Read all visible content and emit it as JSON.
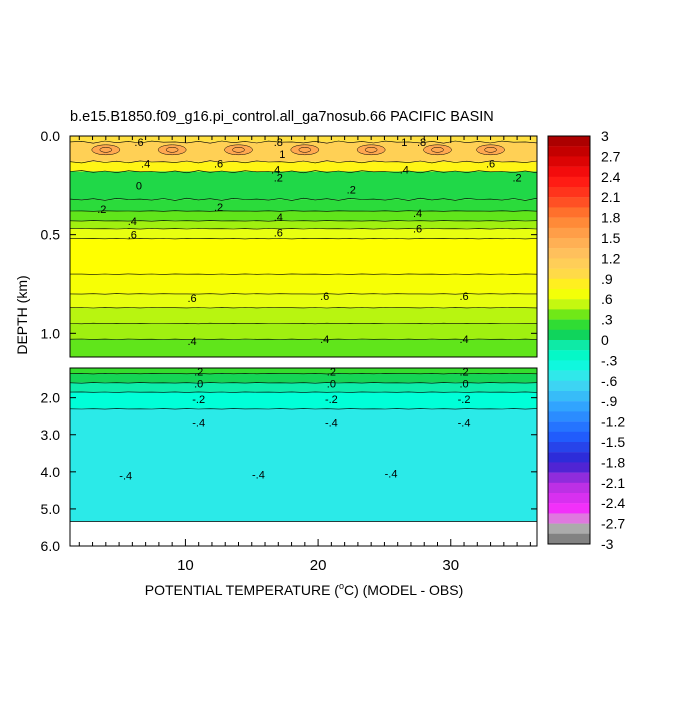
{
  "chart_data": {
    "type": "heatmap",
    "title": "b.e15.B1850.f09_g16.pi_control.all_ga7nosub.66 PACIFIC BASIN",
    "xlabel": "POTENTIAL TEMPERATURE (°C) (MODEL - OBS)",
    "xlabel_parts": [
      "POTENTIAL TEMPERATURE (",
      "o",
      "C) (MODEL - OBS)"
    ],
    "ylabel": "DEPTH (km)",
    "xlim": [
      1.3,
      36.5
    ],
    "x_ticks": [
      10,
      20,
      30
    ],
    "x_tick_labels": [
      "10",
      "20",
      "30"
    ],
    "upper_panel": {
      "ylim": [
        0.0,
        1.12
      ],
      "y_ticks": [
        0.0,
        0.5,
        1.0
      ],
      "y_tick_labels": [
        "0.0",
        "0.5",
        "1.0"
      ],
      "layers": [
        {
          "depth": [
            0.0,
            0.03
          ],
          "value": 0.9
        },
        {
          "depth": [
            0.03,
            0.13
          ],
          "value": 1.1
        },
        {
          "depth": [
            0.13,
            0.18
          ],
          "value": 0.8
        },
        {
          "depth": [
            0.18,
            0.32
          ],
          "value": 0.15
        },
        {
          "depth": [
            0.32,
            0.38
          ],
          "value": 0.2
        },
        {
          "depth": [
            0.38,
            0.43
          ],
          "value": 0.35
        },
        {
          "depth": [
            0.43,
            0.47
          ],
          "value": 0.45
        },
        {
          "depth": [
            0.47,
            0.52
          ],
          "value": 0.6
        },
        {
          "depth": [
            0.52,
            0.7
          ],
          "value": 0.75
        },
        {
          "depth": [
            0.7,
            0.8
          ],
          "value": 0.7
        },
        {
          "depth": [
            0.8,
            0.87
          ],
          "value": 0.6
        },
        {
          "depth": [
            0.87,
            0.95
          ],
          "value": 0.5
        },
        {
          "depth": [
            0.95,
            1.03
          ],
          "value": 0.45
        },
        {
          "depth": [
            1.03,
            1.12
          ],
          "value": 0.35
        }
      ],
      "contour_labels": [
        {
          "text": ".6",
          "x": 6.5,
          "y": 0.03
        },
        {
          "text": ".8",
          "x": 17,
          "y": 0.03
        },
        {
          "text": "1",
          "x": 26.5,
          "y": 0.03
        },
        {
          "text": ".8",
          "x": 27.8,
          "y": 0.03
        },
        {
          "text": "1",
          "x": 17.3,
          "y": 0.09
        },
        {
          "text": ".4",
          "x": 7,
          "y": 0.14
        },
        {
          "text": ".6",
          "x": 12.5,
          "y": 0.14
        },
        {
          "text": ".4",
          "x": 16.8,
          "y": 0.17
        },
        {
          "text": ".4",
          "x": 26.5,
          "y": 0.17
        },
        {
          "text": ".6",
          "x": 33,
          "y": 0.14
        },
        {
          "text": ".2",
          "x": 35,
          "y": 0.21
        },
        {
          "text": ".2",
          "x": 17,
          "y": 0.21
        },
        {
          "text": "0",
          "x": 6.5,
          "y": 0.25
        },
        {
          "text": ".2",
          "x": 22.5,
          "y": 0.27
        },
        {
          "text": ".2",
          "x": 3.7,
          "y": 0.37
        },
        {
          "text": ".2",
          "x": 12.5,
          "y": 0.36
        },
        {
          "text": ".4",
          "x": 6,
          "y": 0.43
        },
        {
          "text": ".4",
          "x": 17,
          "y": 0.41
        },
        {
          "text": ".4",
          "x": 27.5,
          "y": 0.39
        },
        {
          "text": ".6",
          "x": 6,
          "y": 0.5
        },
        {
          "text": ".6",
          "x": 17,
          "y": 0.49
        },
        {
          "text": ".6",
          "x": 27.5,
          "y": 0.47
        },
        {
          "text": ".6",
          "x": 10.5,
          "y": 0.82
        },
        {
          "text": ".6",
          "x": 20.5,
          "y": 0.81
        },
        {
          "text": ".6",
          "x": 31,
          "y": 0.81
        },
        {
          "text": ".4",
          "x": 10.5,
          "y": 1.04
        },
        {
          "text": ".4",
          "x": 20.5,
          "y": 1.03
        },
        {
          "text": ".4",
          "x": 31,
          "y": 1.03
        }
      ]
    },
    "lower_panel": {
      "ylim": [
        1.2,
        6.0
      ],
      "y_ticks": [
        2.0,
        3.0,
        4.0,
        5.0,
        6.0
      ],
      "y_tick_labels": [
        "2.0",
        "3.0",
        "4.0",
        "5.0",
        "6.0"
      ],
      "layers": [
        {
          "depth": [
            1.2,
            1.35
          ],
          "value": 0.25
        },
        {
          "depth": [
            1.35,
            1.6
          ],
          "value": 0.1
        },
        {
          "depth": [
            1.6,
            1.85
          ],
          "value": -0.1
        },
        {
          "depth": [
            1.85,
            2.3
          ],
          "value": -0.3
        },
        {
          "depth": [
            2.3,
            5.34
          ],
          "value": -0.5
        }
      ],
      "no_data_below_depth": 5.34,
      "contour_labels": [
        {
          "text": ".2",
          "x": 11,
          "y": 1.3
        },
        {
          "text": ".2",
          "x": 21,
          "y": 1.3
        },
        {
          "text": ".2",
          "x": 31,
          "y": 1.3
        },
        {
          "text": ".0",
          "x": 11,
          "y": 1.62
        },
        {
          "text": ".0",
          "x": 21,
          "y": 1.62
        },
        {
          "text": ".0",
          "x": 31,
          "y": 1.62
        },
        {
          "text": "-.2",
          "x": 11,
          "y": 2.04
        },
        {
          "text": "-.2",
          "x": 21,
          "y": 2.04
        },
        {
          "text": "-.2",
          "x": 31,
          "y": 2.04
        },
        {
          "text": "-.4",
          "x": 11,
          "y": 2.67
        },
        {
          "text": "-.4",
          "x": 21,
          "y": 2.67
        },
        {
          "text": "-.4",
          "x": 31,
          "y": 2.67
        },
        {
          "text": "-.4",
          "x": 5.5,
          "y": 4.1
        },
        {
          "text": "-.4",
          "x": 15.5,
          "y": 4.07
        },
        {
          "text": "-.4",
          "x": 25.5,
          "y": 4.05
        }
      ]
    },
    "colorbar": {
      "min": -3,
      "max": 3,
      "levels": 40,
      "labels": [
        "3",
        "2.7",
        "2.4",
        "2.1",
        "1.8",
        "1.5",
        "1.2",
        ".9",
        ".6",
        ".3",
        "0",
        "-.3",
        "-.6",
        "-.9",
        "-1.2",
        "-1.5",
        "-1.8",
        "-2.1",
        "-2.4",
        "-2.7",
        "-3"
      ],
      "color_stops": [
        {
          "v": -3.0,
          "c": "#6e6e6e"
        },
        {
          "v": -2.7,
          "c": "#bfbfbf"
        },
        {
          "v": -2.55,
          "c": "#ff30ff"
        },
        {
          "v": -2.1,
          "c": "#b030e0"
        },
        {
          "v": -1.8,
          "c": "#3020d0"
        },
        {
          "v": -1.4,
          "c": "#2060ff"
        },
        {
          "v": -1.0,
          "c": "#30a0ff"
        },
        {
          "v": -0.6,
          "c": "#40e0f0"
        },
        {
          "v": -0.3,
          "c": "#00ffd8"
        },
        {
          "v": -0.05,
          "c": "#10e8a0"
        },
        {
          "v": 0.0,
          "c": "#00d070"
        },
        {
          "v": 0.3,
          "c": "#40e020"
        },
        {
          "v": 0.45,
          "c": "#a0f010"
        },
        {
          "v": 0.6,
          "c": "#e8ff10"
        },
        {
          "v": 0.75,
          "c": "#ffff00"
        },
        {
          "v": 0.9,
          "c": "#ffe040"
        },
        {
          "v": 1.2,
          "c": "#ffc860"
        },
        {
          "v": 1.5,
          "c": "#ffa850"
        },
        {
          "v": 1.8,
          "c": "#ff8030"
        },
        {
          "v": 2.1,
          "c": "#ff4020"
        },
        {
          "v": 2.4,
          "c": "#ff1010"
        },
        {
          "v": 2.7,
          "c": "#d00000"
        },
        {
          "v": 3.0,
          "c": "#a00000"
        }
      ]
    }
  }
}
